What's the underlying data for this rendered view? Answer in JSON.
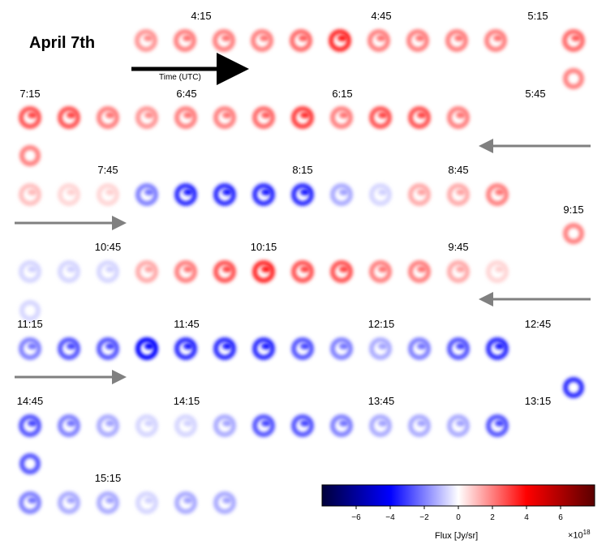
{
  "title": "April 7th",
  "arrow_caption": "Time (UTC)",
  "colorbar": {
    "label": "Flux [Jy/sr]",
    "scale_label": "×10",
    "scale_exponent": "18",
    "ticks": [
      "−6",
      "−4",
      "−2",
      "0",
      "2",
      "4",
      "6"
    ],
    "range": [
      -8,
      8
    ],
    "colors": [
      "#00003a",
      "#0000ff",
      "#ffffff",
      "#ff0000",
      "#5a0000"
    ]
  },
  "time_labels": [
    "4:15",
    "4:45",
    "5:15",
    "5:45",
    "6:15",
    "6:45",
    "7:15",
    "7:45",
    "8:15",
    "8:45",
    "9:15",
    "9:45",
    "10:15",
    "10:45",
    "11:15",
    "11:45",
    "12:15",
    "12:45",
    "13:15",
    "13:45",
    "14:15",
    "14:45",
    "15:15"
  ],
  "frames": {
    "row1": [
      2.5,
      3,
      3,
      3,
      3.5,
      5,
      3,
      3,
      3,
      3,
      3.5
    ],
    "row2": [
      4,
      4,
      3,
      2.5,
      3,
      3,
      3.5,
      4.5,
      3,
      4,
      4,
      3
    ],
    "row3": [
      1.5,
      1,
      1,
      -3,
      -5,
      -5,
      -5,
      -5,
      -2,
      -1,
      2,
      2,
      3
    ],
    "row4": [
      -1,
      -1,
      -1,
      2,
      3,
      4,
      5,
      4,
      4,
      3,
      3,
      2,
      1
    ],
    "row5": [
      -3,
      -4,
      -4,
      -6,
      -5,
      -5,
      -5,
      -4,
      -3,
      -2,
      -3,
      -4,
      -5
    ],
    "row6": [
      -4,
      -3,
      -2,
      -1,
      -1,
      -2,
      -4,
      -4,
      -3,
      -2,
      -2,
      -2,
      -4
    ],
    "row7": [
      -3,
      -2,
      -2,
      -1,
      -2,
      -2
    ]
  }
}
